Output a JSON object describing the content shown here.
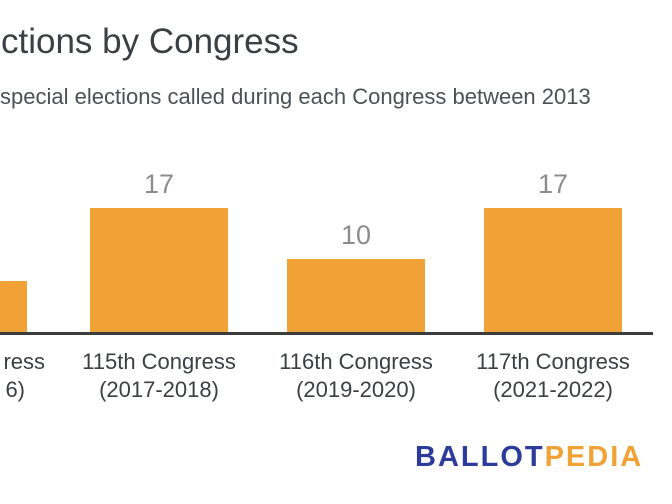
{
  "page": {
    "background": "#FFFFFF"
  },
  "header": {
    "title": "ctions by Congress",
    "subtitle": "special elections called during each Congress between 2013",
    "title_color": "#3C4043",
    "subtitle_color": "#4D5156"
  },
  "chart_data": {
    "type": "bar",
    "title": "ctions by Congress",
    "subtitle": "special elections called during each Congress between 2013",
    "values": [
      7,
      17,
      10,
      17
    ],
    "bars": [
      {
        "value": 7,
        "value_label": "",
        "category_line1": "ress",
        "category_line2": "6)",
        "cropped_by_image_edge": true,
        "value_estimated_from_bar_height": true
      },
      {
        "value": 17,
        "value_label": "17",
        "category_line1": "115th Congress",
        "category_line2": "(2017-2018)"
      },
      {
        "value": 10,
        "value_label": "10",
        "category_line1": "116th Congress",
        "category_line2": "(2019-2020)"
      },
      {
        "value": 17,
        "value_label": "17",
        "category_line1": "117th Congress",
        "category_line2": "(2021-2022)"
      }
    ],
    "bar_color": "#F0A236",
    "axis_line_color": "#3C3C3C",
    "value_label_color": "#8C8C8C",
    "category_label_color": "#3C4043",
    "gridlines": false,
    "legend": "none",
    "y_axis": "hidden"
  },
  "footer": {
    "logo": {
      "part1": "BALLOT",
      "part2": "PEDIA",
      "part1_color": "#2D3C9B",
      "part2_color": "#F0A236"
    }
  }
}
